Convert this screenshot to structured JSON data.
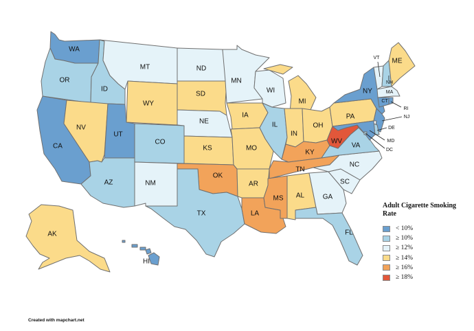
{
  "colors": {
    "lt10": "#6a9fcf",
    "ge10": "#a9d3e6",
    "ge12": "#e5f3f9",
    "ge14": "#fbdb8a",
    "ge16": "#f2a35a",
    "ge18": "#e2573a"
  },
  "legend": {
    "title": "Adult Cigarette Smoking Rate",
    "items": [
      {
        "key": "lt10",
        "label": "< 10%"
      },
      {
        "key": "ge10",
        "label": "≥ 10%"
      },
      {
        "key": "ge12",
        "label": "≥ 12%"
      },
      {
        "key": "ge14",
        "label": "≥ 14%"
      },
      {
        "key": "ge16",
        "label": "≥ 16%"
      },
      {
        "key": "ge18",
        "label": "≥ 18%"
      }
    ]
  },
  "states": {
    "WA": "lt10",
    "OR": "ge10",
    "CA": "lt10",
    "ID": "ge10",
    "NV": "ge14",
    "UT": "lt10",
    "AZ": "ge10",
    "MT": "ge12",
    "WY": "ge14",
    "CO": "ge10",
    "NM": "ge12",
    "ND": "ge12",
    "SD": "ge14",
    "NE": "ge12",
    "KS": "ge14",
    "OK": "ge16",
    "TX": "ge10",
    "MN": "ge12",
    "IA": "ge14",
    "MO": "ge14",
    "AR": "ge14",
    "LA": "ge16",
    "WI": "ge12",
    "IL": "ge10",
    "MI": "ge14",
    "IN": "ge14",
    "OH": "ge14",
    "KY": "ge16",
    "TN": "ge16",
    "MS": "ge16",
    "AL": "ge14",
    "GA": "ge12",
    "FL": "ge10",
    "SC": "ge12",
    "NC": "ge12",
    "VA": "ge10",
    "WV": "ge18",
    "PA": "ge14",
    "NY": "lt10",
    "ME": "ge14",
    "VT": "ge12",
    "NH": "ge10",
    "MA": "ge12",
    "CT": "lt10",
    "RI": "lt10",
    "NJ": "lt10",
    "DE": "ge10",
    "MD": "lt10",
    "DC": "ge10",
    "AK": "ge14",
    "HI": "lt10"
  },
  "credit": "Created with mapchart.net"
}
